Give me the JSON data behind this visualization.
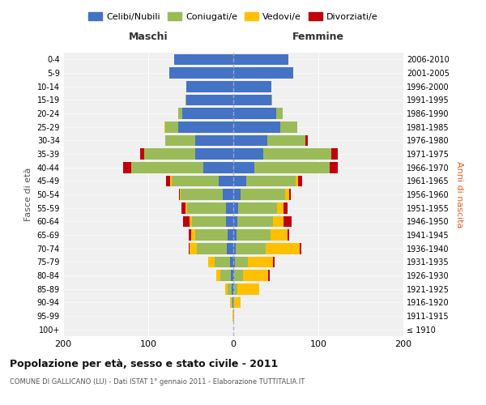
{
  "age_groups": [
    "100+",
    "95-99",
    "90-94",
    "85-89",
    "80-84",
    "75-79",
    "70-74",
    "65-69",
    "60-64",
    "55-59",
    "50-54",
    "45-49",
    "40-44",
    "35-39",
    "30-34",
    "25-29",
    "20-24",
    "15-19",
    "10-14",
    "5-9",
    "0-4"
  ],
  "birth_years": [
    "≤ 1910",
    "1911-1915",
    "1916-1920",
    "1921-1925",
    "1926-1930",
    "1931-1935",
    "1936-1940",
    "1941-1945",
    "1946-1950",
    "1951-1955",
    "1956-1960",
    "1961-1965",
    "1966-1970",
    "1971-1975",
    "1976-1980",
    "1981-1985",
    "1986-1990",
    "1991-1995",
    "1996-2000",
    "2001-2005",
    "2006-2010"
  ],
  "colors": {
    "celibe": "#4472c4",
    "coniugato": "#9bbb59",
    "vedovo": "#ffc000",
    "divorziato": "#c0000b"
  },
  "maschi": {
    "celibe": [
      0,
      0,
      1,
      2,
      3,
      4,
      8,
      7,
      9,
      9,
      12,
      17,
      35,
      45,
      45,
      65,
      60,
      55,
      55,
      75,
      70
    ],
    "coniugato": [
      0,
      0,
      1,
      5,
      12,
      18,
      35,
      38,
      40,
      45,
      50,
      55,
      85,
      60,
      35,
      15,
      5,
      1,
      0,
      0,
      0
    ],
    "vedovo": [
      0,
      1,
      2,
      3,
      5,
      8,
      8,
      5,
      2,
      2,
      1,
      2,
      0,
      0,
      0,
      1,
      0,
      0,
      0,
      0,
      0
    ],
    "divorziato": [
      0,
      0,
      0,
      0,
      0,
      0,
      1,
      2,
      8,
      5,
      1,
      5,
      10,
      5,
      0,
      0,
      0,
      0,
      0,
      0,
      0
    ]
  },
  "femmine": {
    "celibe": [
      0,
      0,
      0,
      1,
      1,
      2,
      3,
      4,
      5,
      6,
      9,
      15,
      25,
      35,
      40,
      55,
      50,
      45,
      45,
      70,
      65
    ],
    "coniugato": [
      0,
      0,
      1,
      4,
      10,
      15,
      35,
      40,
      42,
      45,
      52,
      58,
      88,
      80,
      45,
      20,
      8,
      1,
      0,
      0,
      0
    ],
    "vedovo": [
      0,
      1,
      8,
      25,
      30,
      30,
      40,
      20,
      12,
      8,
      5,
      3,
      0,
      0,
      0,
      0,
      0,
      0,
      0,
      0,
      0
    ],
    "divorziato": [
      0,
      0,
      0,
      0,
      2,
      2,
      2,
      2,
      10,
      5,
      2,
      5,
      10,
      8,
      3,
      0,
      0,
      0,
      0,
      0,
      0
    ]
  },
  "title": "Popolazione per età, sesso e stato civile - 2011",
  "subtitle": "COMUNE DI GALLICANO (LU) - Dati ISTAT 1° gennaio 2011 - Elaborazione TUTTITALIA.IT",
  "xlabel_left": "Maschi",
  "xlabel_right": "Femmine",
  "ylabel_left": "Fasce di età",
  "ylabel_right": "Anni di nascita",
  "legend_labels": [
    "Celibi/Nubili",
    "Coniugati/e",
    "Vedovi/e",
    "Divorziati/e"
  ],
  "xlim": 200,
  "background_color": "#ffffff",
  "ax_bg_color": "#f0f0f0"
}
